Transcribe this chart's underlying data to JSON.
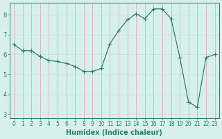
{
  "x": [
    0,
    1,
    2,
    3,
    4,
    5,
    6,
    7,
    8,
    9,
    10,
    11,
    12,
    13,
    14,
    15,
    16,
    17,
    18,
    19,
    20,
    21,
    22,
    23
  ],
  "y": [
    6.5,
    6.2,
    6.2,
    5.9,
    5.7,
    5.65,
    5.55,
    5.4,
    5.15,
    5.15,
    5.3,
    6.55,
    7.2,
    7.75,
    8.05,
    7.8,
    8.3,
    8.3,
    7.8,
    5.85,
    3.6,
    3.35,
    5.85,
    6.0
  ],
  "line_color": "#2e7d6e",
  "marker": "+",
  "marker_size": 4,
  "linewidth": 0.9,
  "xlabel": "Humidex (Indice chaleur)",
  "xlabel_fontsize": 7,
  "bg_color": "#d8f0ec",
  "grid_color_major": "#c8e0da",
  "grid_color_minor": "#e0f0ec",
  "tick_color": "#2e7d6e",
  "ylim": [
    2.8,
    8.6
  ],
  "yticks": [
    3,
    4,
    5,
    6,
    7,
    8
  ],
  "xlim": [
    -0.5,
    23.5
  ],
  "xticks": [
    0,
    1,
    2,
    3,
    4,
    5,
    6,
    7,
    8,
    9,
    10,
    11,
    12,
    13,
    14,
    15,
    16,
    17,
    18,
    19,
    20,
    21,
    22,
    23
  ],
  "tick_fontsize": 5.5,
  "xlabel_bold": true
}
